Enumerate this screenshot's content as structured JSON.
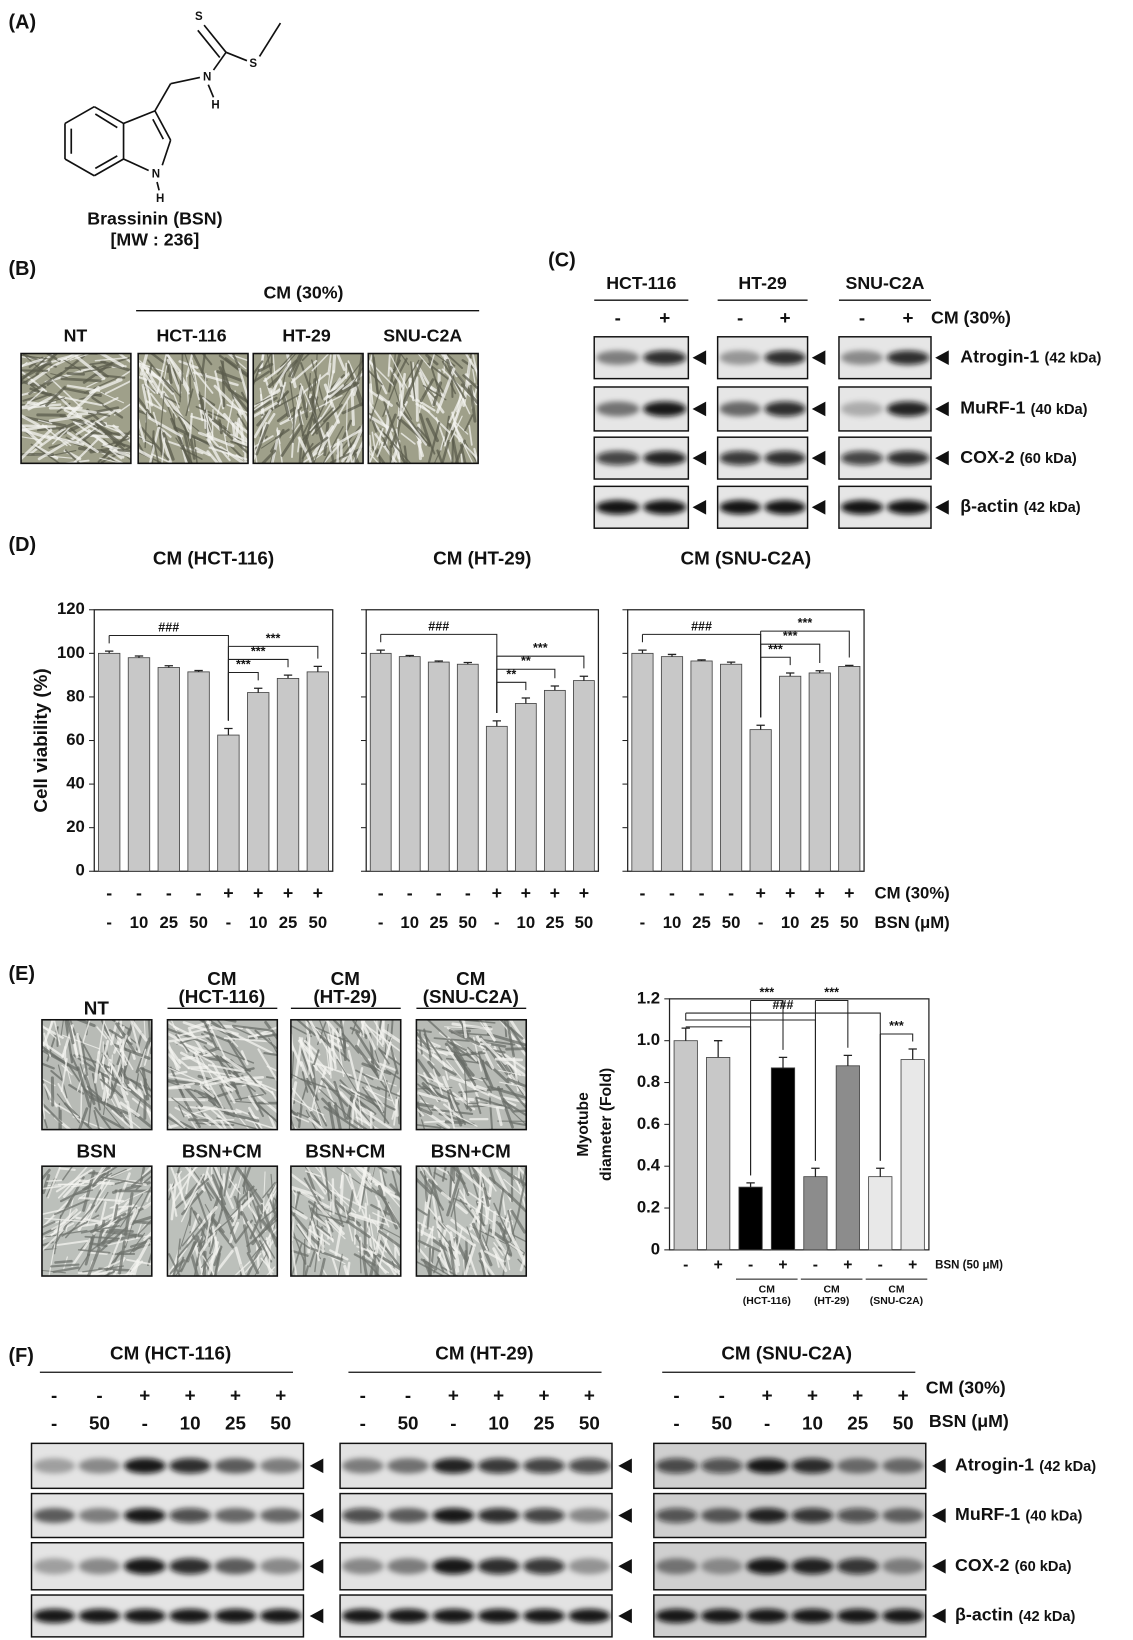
{
  "panel_labels": [
    "(A)",
    "(B)",
    "(C)",
    "(D)",
    "(E)",
    "(F)"
  ],
  "structure": {
    "atoms": [
      "S",
      "S",
      "N",
      "H",
      "N",
      "H"
    ],
    "name": "Brassinin (BSN)",
    "mw": "[MW : 236]"
  },
  "micrographs_b": {
    "group": "CM (30%)",
    "labels": [
      "NT",
      "HCT-116",
      "HT-29",
      "SNU-C2A"
    ]
  },
  "blot_c": {
    "cell_lines": [
      "HCT-116",
      "HT-29",
      "SNU-C2A"
    ],
    "signs": [
      "-",
      "+"
    ],
    "treatment": "CM (30%)",
    "proteins": [
      {
        "name": "Atrogin-1",
        "size": "(42 kDa)"
      },
      {
        "name": "MuRF-1",
        "size": "(40 kDa)"
      },
      {
        "name": "COX-2",
        "size": "(60 kDa)"
      },
      {
        "name": "β-actin",
        "size": "(42 kDa)"
      }
    ]
  },
  "chart_data": [
    {
      "type": "bar",
      "title": "CM (HCT-116)",
      "ylabel": "Cell viability (%)",
      "ylim": [
        0,
        120
      ],
      "yticks": [
        0,
        20,
        40,
        60,
        80,
        100,
        120
      ],
      "tick_labels": true,
      "color": "#c8c8c8",
      "cm_row": [
        "-",
        "-",
        "-",
        "-",
        "+",
        "+",
        "+",
        "+"
      ],
      "categories": [
        "-",
        "10",
        "25",
        "50",
        "-",
        "10",
        "25",
        "50"
      ],
      "values": [
        100,
        98,
        93.5,
        91.5,
        62.5,
        82,
        88.5,
        91.5
      ],
      "errors": [
        1,
        0.8,
        0.8,
        0.6,
        3,
        2,
        1.5,
        2.5
      ],
      "brackets": [
        {
          "text": "###",
          "from": 0,
          "to": 4
        },
        {
          "text": "***",
          "from": 4,
          "to": 5
        },
        {
          "text": "***",
          "from": 4,
          "to": 6
        },
        {
          "text": "***",
          "from": 4,
          "to": 7
        }
      ]
    },
    {
      "type": "bar",
      "title": "CM (HT-29)",
      "ylim": [
        0,
        120
      ],
      "yticks": [
        0,
        20,
        40,
        60,
        80,
        100,
        120
      ],
      "tick_labels": false,
      "color": "#c8c8c8",
      "cm_row": [
        "-",
        "-",
        "-",
        "-",
        "+",
        "+",
        "+",
        "+"
      ],
      "categories": [
        "-",
        "10",
        "25",
        "50",
        "-",
        "10",
        "25",
        "50"
      ],
      "values": [
        100,
        98.5,
        96,
        95,
        66.5,
        77,
        83,
        87.5
      ],
      "errors": [
        1.5,
        0.5,
        0.5,
        0.8,
        2.5,
        2.5,
        2,
        2
      ],
      "brackets": [
        {
          "text": "###",
          "from": 0,
          "to": 4
        },
        {
          "text": "**",
          "from": 4,
          "to": 5
        },
        {
          "text": "**",
          "from": 4,
          "to": 6
        },
        {
          "text": "***",
          "from": 4,
          "to": 7
        }
      ]
    },
    {
      "type": "bar",
      "title": "CM (SNU-C2A)",
      "ylim": [
        0,
        120
      ],
      "yticks": [
        0,
        20,
        40,
        60,
        80,
        100,
        120
      ],
      "tick_labels": false,
      "color": "#c8c8c8",
      "cm_row": [
        "-",
        "-",
        "-",
        "-",
        "+",
        "+",
        "+",
        "+"
      ],
      "categories": [
        "-",
        "10",
        "25",
        "50",
        "-",
        "10",
        "25",
        "50"
      ],
      "row_labels": [
        "CM (30%)",
        "BSN (μM)"
      ],
      "values": [
        100,
        98.5,
        96.5,
        95,
        65,
        89.5,
        91,
        94
      ],
      "errors": [
        1.5,
        1,
        0.5,
        1,
        2,
        1.5,
        1,
        0.5
      ],
      "brackets": [
        {
          "text": "###",
          "from": 0,
          "to": 4
        },
        {
          "text": "***",
          "from": 4,
          "to": 5
        },
        {
          "text": "***",
          "from": 4,
          "to": 6
        },
        {
          "text": "***",
          "from": 4,
          "to": 7
        }
      ]
    },
    {
      "type": "bar",
      "ylabel_lines": [
        "Myotube",
        "diameter (Fold)"
      ],
      "ylim": [
        0,
        1.2
      ],
      "yticks": [
        0,
        0.2,
        0.4,
        0.6,
        0.8,
        {
          "value": 1,
          "label": "1.0"
        },
        1.2
      ],
      "tick_labels": true,
      "colors": [
        "#c8c8c8",
        "#c8c8c8",
        "#000000",
        "#000000",
        "#8c8c8c",
        "#8c8c8c",
        "#e8e8e8",
        "#e8e8e8"
      ],
      "categories": [
        "-",
        "+",
        "-",
        "+",
        "-",
        "+",
        "-",
        "+"
      ],
      "xlabel": "BSN (50 μM)",
      "groups": [
        {
          "lines": [
            "CM",
            "(HCT-116)"
          ],
          "from": 2,
          "to": 3
        },
        {
          "lines": [
            "CM",
            "(HT-29)"
          ],
          "from": 4,
          "to": 5
        },
        {
          "lines": [
            "CM",
            "(SNU-C2A)"
          ],
          "from": 6,
          "to": 7
        }
      ],
      "values": [
        1.0,
        0.92,
        0.3,
        0.87,
        0.35,
        0.88,
        0.35,
        0.91
      ],
      "errors": [
        0.06,
        0.08,
        0.02,
        0.05,
        0.04,
        0.05,
        0.04,
        0.05
      ],
      "brackets": [
        {
          "text": "###",
          "from": 0,
          "to": [
            2,
            4,
            6
          ]
        },
        {
          "text": "***",
          "from": 2,
          "to": 3
        },
        {
          "text": "***",
          "from": 4,
          "to": 5
        },
        {
          "text": "***",
          "from": 6,
          "to": 7
        }
      ]
    }
  ],
  "micrographs_e": {
    "top": [
      {
        "label": "NT"
      },
      {
        "label": "CM",
        "sub": "(HCT-116)"
      },
      {
        "label": "CM",
        "sub": "(HT-29)"
      },
      {
        "label": "CM",
        "sub": "(SNU-C2A)"
      }
    ],
    "bottom": [
      "BSN",
      "BSN+CM",
      "BSN+CM",
      "BSN+CM"
    ]
  },
  "blot_f": {
    "groups": [
      "CM (HCT-116)",
      "CM (HT-29)",
      "CM (SNU-C2A)"
    ],
    "cm_row": [
      "-",
      "-",
      "+",
      "+",
      "+",
      "+"
    ],
    "bsn_row": [
      "-",
      "50",
      "-",
      "10",
      "25",
      "50"
    ],
    "cm_label": "CM (30%)",
    "bsn_label": "BSN (μM)",
    "proteins": [
      {
        "name": "Atrogin-1",
        "size": "(42 kDa)"
      },
      {
        "name": "MuRF-1",
        "size": "(40 kDa)"
      },
      {
        "name": "COX-2",
        "size": "(60 kDa)"
      },
      {
        "name": "β-actin",
        "size": "(42 kDa)"
      }
    ]
  }
}
